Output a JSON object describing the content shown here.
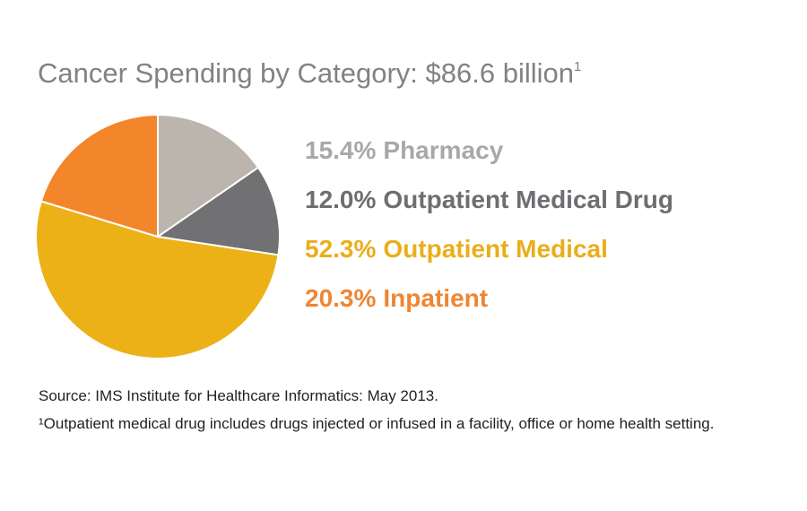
{
  "title": "Cancer Spending by Category: $86.6 billion",
  "title_footnote_mark": "1",
  "chart_data": {
    "type": "pie",
    "title": "Cancer Spending by Category: $86.6 billion",
    "total": "$86.6 billion",
    "legend_position": "right",
    "slices": [
      {
        "label": "Pharmacy",
        "value": 15.4,
        "value_label": "15.4%",
        "color": "#bcb5ad"
      },
      {
        "label": "Outpatient Medical Drug",
        "value": 12.0,
        "value_label": "12.0%",
        "color": "#717174"
      },
      {
        "label": "Outpatient Medical",
        "value": 52.3,
        "value_label": "52.3%",
        "color": "#edb118"
      },
      {
        "label": "Inpatient",
        "value": 20.3,
        "value_label": "20.3%",
        "color": "#f3852b"
      }
    ]
  },
  "legend_colors": [
    "#a9a8a9",
    "#6d6e71",
    "#e9ae1a",
    "#f08532"
  ],
  "footer": {
    "source": "Source: IMS Institute for Healthcare Informatics: May 2013.",
    "footnote": "¹Outpatient medical drug includes drugs injected or infused in a facility, office or home health setting."
  }
}
